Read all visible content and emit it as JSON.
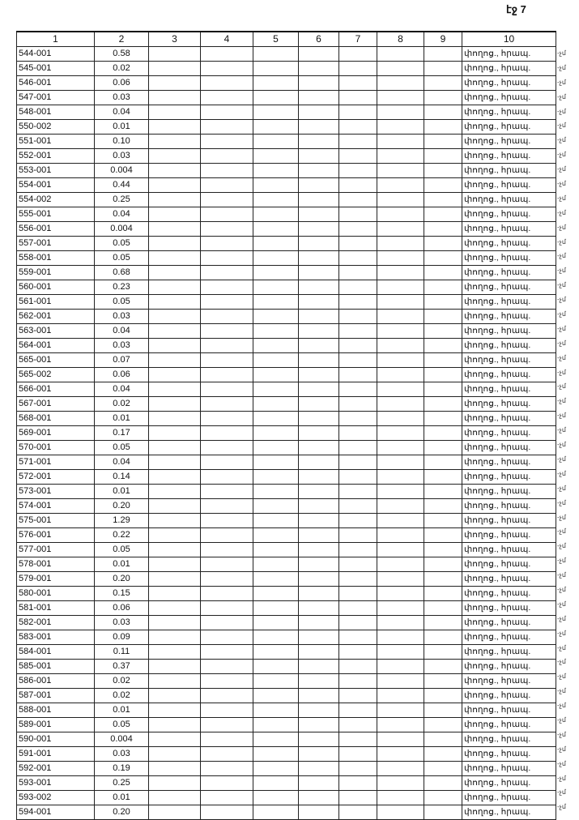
{
  "page_number": "էջ 7",
  "headers": [
    "1",
    "2",
    "3",
    "4",
    "5",
    "6",
    "7",
    "8",
    "9",
    "10"
  ],
  "row_note": "փողոց., հրապ.",
  "margin_mark": "-չմ",
  "rows": [
    [
      "544-001",
      "0.58"
    ],
    [
      "545-001",
      "0.02"
    ],
    [
      "546-001",
      "0.06"
    ],
    [
      "547-001",
      "0.03"
    ],
    [
      "548-001",
      "0.04"
    ],
    [
      "550-002",
      "0.01"
    ],
    [
      "551-001",
      "0.10"
    ],
    [
      "552-001",
      "0.03"
    ],
    [
      "553-001",
      "0.004"
    ],
    [
      "554-001",
      "0.44"
    ],
    [
      "554-002",
      "0.25"
    ],
    [
      "555-001",
      "0.04"
    ],
    [
      "556-001",
      "0.004"
    ],
    [
      "557-001",
      "0.05"
    ],
    [
      "558-001",
      "0.05"
    ],
    [
      "559-001",
      "0.68"
    ],
    [
      "560-001",
      "0.23"
    ],
    [
      "561-001",
      "0.05"
    ],
    [
      "562-001",
      "0.03"
    ],
    [
      "563-001",
      "0.04"
    ],
    [
      "564-001",
      "0.03"
    ],
    [
      "565-001",
      "0.07"
    ],
    [
      "565-002",
      "0.06"
    ],
    [
      "566-001",
      "0.04"
    ],
    [
      "567-001",
      "0.02"
    ],
    [
      "568-001",
      "0.01"
    ],
    [
      "569-001",
      "0.17"
    ],
    [
      "570-001",
      "0.05"
    ],
    [
      "571-001",
      "0.04"
    ],
    [
      "572-001",
      "0.14"
    ],
    [
      "573-001",
      "0.01"
    ],
    [
      "574-001",
      "0.20"
    ],
    [
      "575-001",
      "1.29"
    ],
    [
      "576-001",
      "0.22"
    ],
    [
      "577-001",
      "0.05"
    ],
    [
      "578-001",
      "0.01"
    ],
    [
      "579-001",
      "0.20"
    ],
    [
      "580-001",
      "0.15"
    ],
    [
      "581-001",
      "0.06"
    ],
    [
      "582-001",
      "0.03"
    ],
    [
      "583-001",
      "0.09"
    ],
    [
      "584-001",
      "0.11"
    ],
    [
      "585-001",
      "0.37"
    ],
    [
      "586-001",
      "0.02"
    ],
    [
      "587-001",
      "0.02"
    ],
    [
      "588-001",
      "0.01"
    ],
    [
      "589-001",
      "0.05"
    ],
    [
      "590-001",
      "0.004"
    ],
    [
      "591-001",
      "0.03"
    ],
    [
      "592-001",
      "0.19"
    ],
    [
      "593-001",
      "0.25"
    ],
    [
      "593-002",
      "0.01"
    ],
    [
      "594-001",
      "0.20"
    ]
  ]
}
